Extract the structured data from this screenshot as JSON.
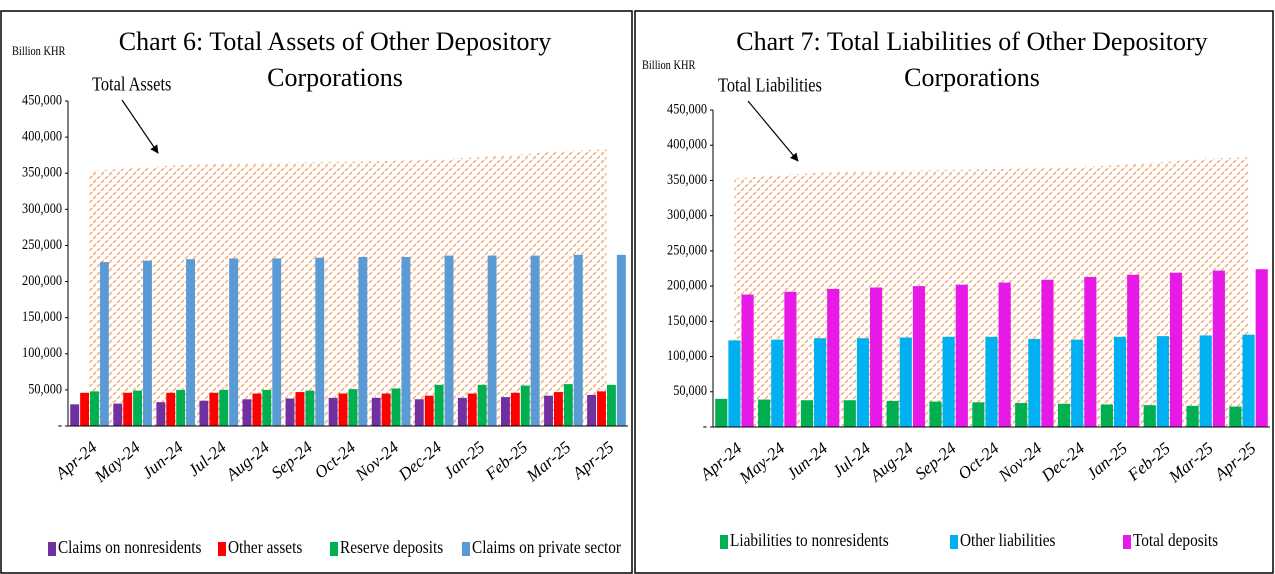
{
  "chart_data": [
    {
      "type": "bar",
      "title": [
        "Chart 6: Total Assets of Other Depository",
        "Corporations"
      ],
      "y_label": "Billion KHR",
      "categories": [
        "Apr-24",
        "May-24",
        "Jun-24",
        "Jul-24",
        "Aug-24",
        "Sep-24",
        "Oct-24",
        "Nov-24",
        "Dec-24",
        "Jan-25",
        "Feb-25",
        "Mar-25",
        "Apr-25"
      ],
      "area": {
        "name": "Total Assets",
        "color": "#f4b183",
        "values": [
          353000,
          357000,
          361000,
          363000,
          364000,
          365000,
          366000,
          367000,
          369000,
          372000,
          376000,
          381000,
          383000
        ]
      },
      "series": [
        {
          "name": "Claims on nonresidents",
          "color": "#7030a0",
          "values": [
            30000,
            31000,
            33000,
            35000,
            37000,
            38000,
            39000,
            39000,
            37000,
            39000,
            40000,
            42000,
            43000
          ]
        },
        {
          "name": "Other assets",
          "color": "#ff0000",
          "values": [
            46000,
            46000,
            46000,
            46000,
            45000,
            47000,
            45000,
            45000,
            42000,
            45000,
            46000,
            47000,
            48000
          ]
        },
        {
          "name": "Reserve deposits",
          "color": "#00b050",
          "values": [
            48000,
            49000,
            50000,
            50000,
            50000,
            49000,
            51000,
            52000,
            57000,
            57000,
            56000,
            58000,
            57000
          ]
        },
        {
          "name": "Claims on private sector",
          "color": "#5b9bd5",
          "values": [
            227000,
            229000,
            231000,
            232000,
            232000,
            233000,
            234000,
            234000,
            236000,
            236000,
            236000,
            237000,
            237000
          ]
        }
      ],
      "ylim": [
        0,
        450000
      ],
      "yticks": [
        {
          "value": 0,
          "label": "-"
        },
        {
          "value": 50000,
          "label": "50,000"
        },
        {
          "value": 100000,
          "label": "100,000"
        },
        {
          "value": 150000,
          "label": "150,000"
        },
        {
          "value": 200000,
          "label": "200,000"
        },
        {
          "value": 250000,
          "label": "250,000"
        },
        {
          "value": 300000,
          "label": "300,000"
        },
        {
          "value": 350000,
          "label": "350,000"
        },
        {
          "value": 400000,
          "label": "400,000"
        },
        {
          "value": 450000,
          "label": "450,000"
        }
      ],
      "legend": "bottom"
    },
    {
      "type": "bar",
      "title": [
        "Chart 7: Total Liabilities of Other Depository",
        "Corporations"
      ],
      "y_label": "Billion KHR",
      "categories": [
        "Apr-24",
        "May-24",
        "Jun-24",
        "Jul-24",
        "Aug-24",
        "Sep-24",
        "Oct-24",
        "Nov-24",
        "Dec-24",
        "Jan-25",
        "Feb-25",
        "Mar-25",
        "Apr-25"
      ],
      "area": {
        "name": "Total Liabilities",
        "color": "#f4b183",
        "values": [
          353000,
          357000,
          361000,
          363000,
          364000,
          365000,
          366000,
          367000,
          369000,
          372000,
          376000,
          381000,
          383000
        ]
      },
      "series": [
        {
          "name": "Liabilities to nonresidents",
          "color": "#00b050",
          "values": [
            40000,
            39000,
            38000,
            38000,
            37000,
            36000,
            35000,
            34000,
            33000,
            32000,
            31000,
            30000,
            29000
          ]
        },
        {
          "name": "Other liabilities",
          "color": "#00b0f0",
          "values": [
            123000,
            124000,
            126000,
            126000,
            127000,
            128000,
            128000,
            125000,
            124000,
            128000,
            129000,
            130000,
            131000
          ]
        },
        {
          "name": "Total deposits",
          "color": "#e619e6",
          "values": [
            188000,
            192000,
            196000,
            198000,
            200000,
            202000,
            205000,
            209000,
            213000,
            216000,
            219000,
            222000,
            224000
          ]
        }
      ],
      "ylim": [
        0,
        450000
      ],
      "yticks": [
        {
          "value": 0,
          "label": "-"
        },
        {
          "value": 50000,
          "label": "50,000"
        },
        {
          "value": 100000,
          "label": "100,000"
        },
        {
          "value": 150000,
          "label": "150,000"
        },
        {
          "value": 200000,
          "label": "200,000"
        },
        {
          "value": 250000,
          "label": "250,000"
        },
        {
          "value": 300000,
          "label": "300,000"
        },
        {
          "value": 350000,
          "label": "350,000"
        },
        {
          "value": 400000,
          "label": "400,000"
        },
        {
          "value": 450000,
          "label": "450,000"
        }
      ],
      "legend": "bottom"
    }
  ]
}
